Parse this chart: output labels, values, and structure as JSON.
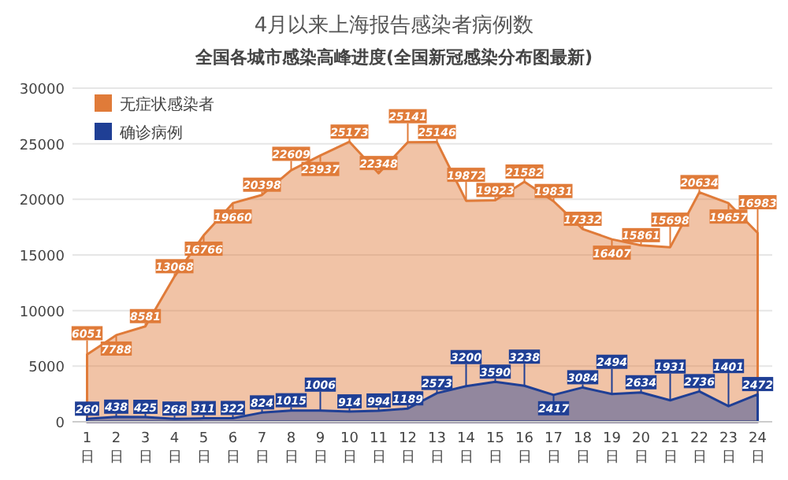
{
  "chart_data": {
    "type": "area",
    "title": "4月以来上海报告感染者病例数",
    "annotations": [
      "全国各城市感染高峰进度(全国新冠感染分布图最新)"
    ],
    "categories": [
      "1日",
      "2日",
      "3日",
      "4日",
      "5日",
      "6日",
      "7日",
      "8日",
      "9日",
      "10日",
      "11日",
      "12日",
      "13日",
      "14日",
      "15日",
      "16日",
      "17日",
      "18日",
      "19日",
      "20日",
      "21日",
      "22日",
      "23日",
      "24日"
    ],
    "series": [
      {
        "name": "无症状感染者",
        "color": "#e07b39",
        "values": [
          6051,
          7788,
          8581,
          13068,
          16766,
          19660,
          20398,
          22609,
          23937,
          25173,
          22348,
          25141,
          25146,
          19872,
          19923,
          21582,
          19831,
          17332,
          16407,
          15861,
          15698,
          20634,
          19657,
          16983
        ]
      },
      {
        "name": "确诊病例",
        "color": "#1f3f95",
        "values": [
          260,
          438,
          425,
          268,
          311,
          322,
          824,
          1015,
          1006,
          914,
          994,
          1189,
          2573,
          3200,
          3590,
          3238,
          2417,
          3084,
          2494,
          2634,
          1931,
          2736,
          1401,
          2472
        ]
      }
    ],
    "ylim": [
      0,
      30000
    ],
    "yticks": [
      0,
      5000,
      10000,
      15000,
      20000,
      25000,
      30000
    ],
    "grid": "y",
    "legend": "top left",
    "data_labels": true
  }
}
